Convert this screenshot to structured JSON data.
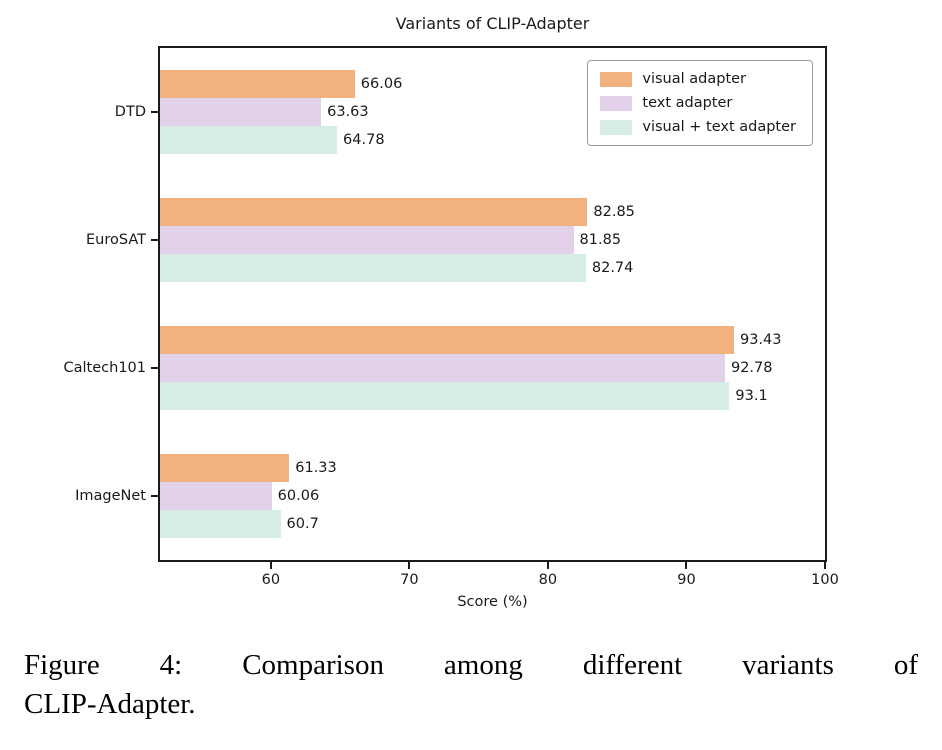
{
  "chart_data": {
    "type": "bar",
    "orientation": "horizontal",
    "title": "Variants of CLIP-Adapter",
    "xlabel": "Score (%)",
    "categories": [
      "DTD",
      "EuroSAT",
      "Caltech101",
      "ImageNet"
    ],
    "series": [
      {
        "name": "visual adapter",
        "color": "#F2B27D",
        "values": [
          66.06,
          82.85,
          93.43,
          61.33
        ]
      },
      {
        "name": "text adapter",
        "color": "#E2D1E9",
        "values": [
          63.63,
          81.85,
          92.78,
          60.06
        ]
      },
      {
        "name": "visual + text adapter",
        "color": "#D5EDE3",
        "values": [
          64.78,
          82.74,
          93.1,
          60.7
        ]
      }
    ],
    "xlim": [
      52,
      100
    ],
    "xticks": [
      60,
      70,
      80,
      90,
      100
    ],
    "grid": false,
    "legend_position": "upper right"
  },
  "caption": {
    "line1": "Figure 4: Comparison among different variants of",
    "line2": "CLIP-Adapter."
  }
}
